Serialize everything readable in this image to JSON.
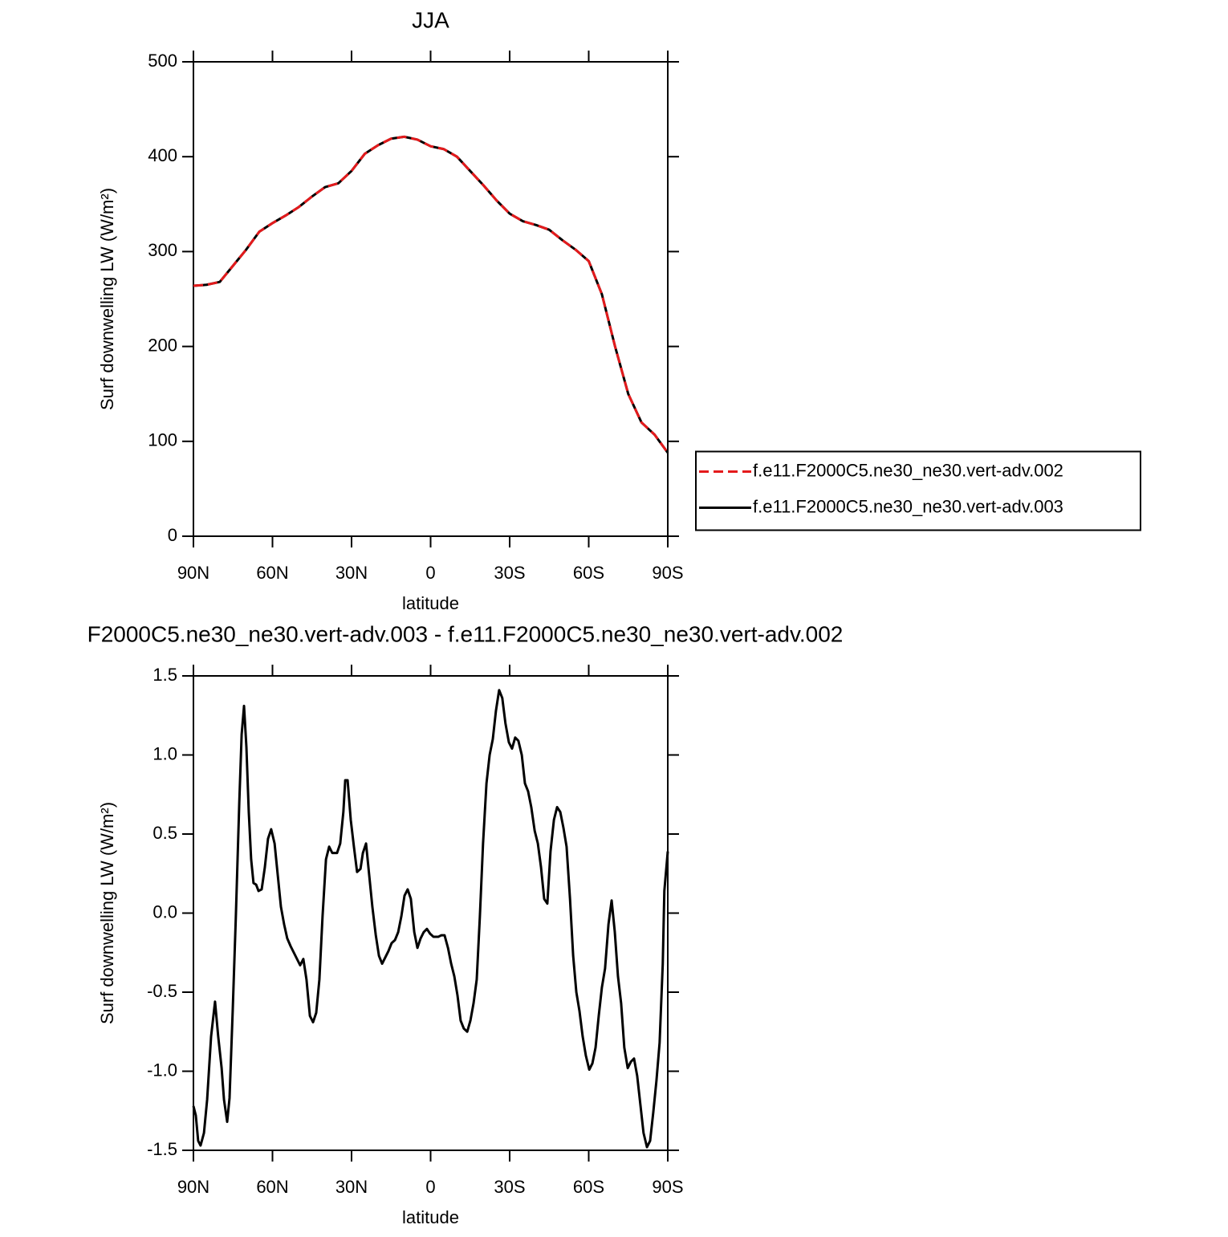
{
  "chart_data": [
    {
      "type": "line",
      "title": "JJA",
      "x_label": "latitude",
      "y_label": "Surf downwelling LW (W/m²)",
      "x": [
        90,
        85,
        80,
        75,
        70,
        65,
        60,
        55,
        50,
        45,
        40,
        35,
        30,
        25,
        20,
        15,
        10,
        5,
        0,
        -5,
        -10,
        -15,
        -20,
        -25,
        -30,
        -35,
        -40,
        -45,
        -50,
        -55,
        -60,
        -65,
        -70,
        -75,
        -80,
        -85,
        -90
      ],
      "series": [
        {
          "name": "f.e11.F2000C5.ne30_ne30.vert-adv.002",
          "color": "#e41a1c",
          "linestyle": "dashed",
          "values": [
            264,
            265,
            268,
            285,
            302,
            321,
            330,
            338,
            347,
            358,
            368,
            372,
            385,
            403,
            412,
            419,
            421,
            418,
            411,
            408,
            400,
            385,
            370,
            354,
            340,
            332,
            328,
            323,
            312,
            302,
            290,
            255,
            200,
            150,
            120,
            107,
            88
          ]
        },
        {
          "name": "f.e11.F2000C5.ne30_ne30.vert-adv.003",
          "color": "#000000",
          "linestyle": "solid",
          "values": [
            264,
            265,
            268,
            285,
            302,
            321,
            330,
            338,
            347,
            358,
            368,
            372,
            385,
            403,
            412,
            419,
            421,
            418,
            411,
            408,
            400,
            385,
            370,
            354,
            340,
            332,
            328,
            323,
            312,
            302,
            290,
            255,
            200,
            150,
            120,
            107,
            88
          ]
        }
      ],
      "xlim": [
        90,
        -90
      ],
      "xticks": [
        {
          "value": 90,
          "label": "90N"
        },
        {
          "value": 60,
          "label": "60N"
        },
        {
          "value": 30,
          "label": "30N"
        },
        0,
        {
          "value": -30,
          "label": "30S"
        },
        {
          "value": -60,
          "label": "60S"
        },
        {
          "value": -90,
          "label": "90S"
        }
      ],
      "ylim": [
        0,
        500
      ],
      "yticks": [
        0,
        100,
        200,
        300,
        400,
        500
      ],
      "legend": "right"
    },
    {
      "type": "line",
      "title": "F2000C5.ne30_ne30.vert-adv.003 - f.e11.F2000C5.ne30_ne30.vert-adv.002",
      "x_label": "latitude",
      "y_label": "Surf downwelling LW (W/m²)",
      "x": [
        90,
        89.1,
        88.2,
        87.3,
        86,
        84.8,
        83.3,
        81.8,
        80.6,
        79.3,
        78.4,
        77.2,
        76.3,
        75.1,
        73.9,
        72.6,
        71.7,
        70.8,
        69.9,
        69,
        68.1,
        67.2,
        66.2,
        65.3,
        64.1,
        62.9,
        61.7,
        60.5,
        59.2,
        58,
        56.8,
        55.6,
        54.4,
        53.1,
        51.9,
        50.7,
        49.5,
        48.3,
        47.1,
        45.8,
        44.6,
        43.4,
        42.2,
        41,
        39.7,
        38.5,
        37.3,
        35.5,
        34.3,
        33.1,
        32.4,
        31.5,
        30.3,
        29.1,
        27.9,
        26.6,
        25.7,
        24.5,
        23.3,
        22.1,
        20.8,
        19.6,
        18.4,
        17.2,
        16,
        14.8,
        13.5,
        12.3,
        11.1,
        9.9,
        8.7,
        7.5,
        6.2,
        5,
        3.8,
        2.6,
        1.4,
        0.2,
        -1.1,
        -2.9,
        -4.1,
        -5.3,
        -6.6,
        -7.8,
        -9,
        -10.2,
        -11.4,
        -12.6,
        -13.9,
        -15.1,
        -16.3,
        -17.5,
        -18.7,
        -19.9,
        -21.2,
        -22.4,
        -23.6,
        -24.8,
        -26,
        -27.2,
        -28.4,
        -29.7,
        -30.9,
        -32.1,
        -33.3,
        -34.6,
        -35.8,
        -37,
        -38.2,
        -39.5,
        -40.7,
        -41.9,
        -43.1,
        -44.3,
        -45.5,
        -46.8,
        -48,
        -49.2,
        -50.4,
        -51.6,
        -52.9,
        -54.1,
        -55.3,
        -56.5,
        -57.7,
        -58.9,
        -60.2,
        -61.4,
        -62.6,
        -63.8,
        -65,
        -66.2,
        -67.5,
        -68.7,
        -69.9,
        -71.1,
        -72.3,
        -73.5,
        -74.8,
        -76,
        -77.2,
        -78.4,
        -79.6,
        -80.8,
        -82.1,
        -83.3,
        -84.5,
        -85.7,
        -86.9,
        -88.1,
        -88.7,
        -90
      ],
      "series": [
        {
          "color": "#000000",
          "linestyle": "solid",
          "values": [
            -1.22,
            -1.28,
            -1.44,
            -1.47,
            -1.39,
            -1.18,
            -0.78,
            -0.56,
            -0.78,
            -0.98,
            -1.18,
            -1.32,
            -1.17,
            -0.62,
            -0.02,
            0.7,
            1.13,
            1.31,
            1.05,
            0.64,
            0.34,
            0.19,
            0.18,
            0.14,
            0.15,
            0.29,
            0.47,
            0.53,
            0.44,
            0.24,
            0.04,
            -0.07,
            -0.16,
            -0.21,
            -0.25,
            -0.29,
            -0.33,
            -0.29,
            -0.42,
            -0.65,
            -0.69,
            -0.63,
            -0.42,
            -0.02,
            0.34,
            0.42,
            0.38,
            0.38,
            0.44,
            0.64,
            0.84,
            0.84,
            0.59,
            0.42,
            0.26,
            0.28,
            0.38,
            0.44,
            0.24,
            0.04,
            -0.14,
            -0.27,
            -0.32,
            -0.28,
            -0.24,
            -0.19,
            -0.17,
            -0.12,
            -0.02,
            0.11,
            0.15,
            0.09,
            -0.12,
            -0.22,
            -0.16,
            -0.12,
            -0.1,
            -0.13,
            -0.15,
            -0.15,
            -0.14,
            -0.14,
            -0.22,
            -0.32,
            -0.4,
            -0.52,
            -0.68,
            -0.73,
            -0.75,
            -0.68,
            -0.57,
            -0.42,
            -0.02,
            0.44,
            0.82,
            1.0,
            1.1,
            1.28,
            1.41,
            1.36,
            1.2,
            1.08,
            1.04,
            1.11,
            1.09,
            1.0,
            0.82,
            0.77,
            0.67,
            0.52,
            0.44,
            0.29,
            0.09,
            0.06,
            0.39,
            0.59,
            0.67,
            0.64,
            0.54,
            0.42,
            0.09,
            -0.27,
            -0.5,
            -0.62,
            -0.78,
            -0.9,
            -0.99,
            -0.95,
            -0.85,
            -0.65,
            -0.47,
            -0.35,
            -0.07,
            0.08,
            -0.12,
            -0.4,
            -0.57,
            -0.85,
            -0.98,
            -0.94,
            -0.92,
            -1.03,
            -1.21,
            -1.39,
            -1.48,
            -1.44,
            -1.26,
            -1.06,
            -0.82,
            -0.32,
            0.14,
            0.39
          ]
        }
      ],
      "xlim": [
        90,
        -90
      ],
      "xticks": [
        {
          "value": 90,
          "label": "90N"
        },
        {
          "value": 60,
          "label": "60N"
        },
        {
          "value": 30,
          "label": "30N"
        },
        0,
        {
          "value": -30,
          "label": "30S"
        },
        {
          "value": -60,
          "label": "60S"
        },
        {
          "value": -90,
          "label": "90S"
        }
      ],
      "ylim": [
        -1.5,
        1.5
      ],
      "yticks": [
        -1.5,
        {
          "value": -1,
          "label": "-1.0"
        },
        -0.5,
        {
          "value": 0,
          "label": "0.0"
        },
        0.5,
        {
          "value": 1,
          "label": "1.0"
        },
        1.5
      ]
    }
  ]
}
